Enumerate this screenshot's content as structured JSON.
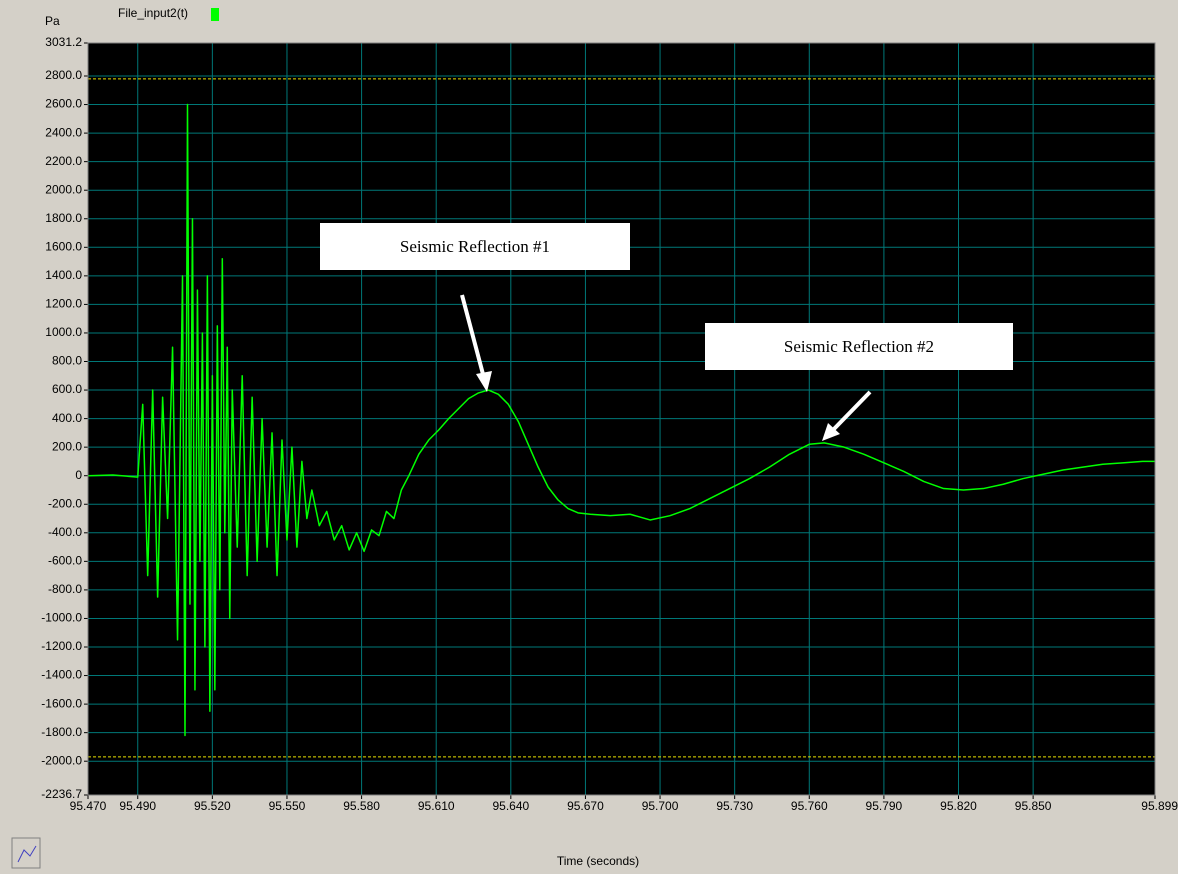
{
  "chart_data": {
    "type": "line",
    "y_unit": "Pa",
    "legend": "File_input2(t)",
    "xlabel": "Time (seconds)",
    "annotations": [
      "Seismic Reflection #1",
      "Seismic Reflection #2"
    ],
    "color": "#00ff00",
    "grid": true,
    "limit_lines": [
      2780,
      -1970
    ],
    "limit_color": "#e8e000",
    "xlim": [
      95.47,
      95.899
    ],
    "xticks": [
      {
        "value": 95.47,
        "label": "95.470"
      },
      {
        "value": 95.49,
        "label": "95.490"
      },
      {
        "value": 95.52,
        "label": "95.520"
      },
      {
        "value": 95.55,
        "label": "95.550"
      },
      {
        "value": 95.58,
        "label": "95.580"
      },
      {
        "value": 95.61,
        "label": "95.610"
      },
      {
        "value": 95.64,
        "label": "95.640"
      },
      {
        "value": 95.67,
        "label": "95.670"
      },
      {
        "value": 95.7,
        "label": "95.700"
      },
      {
        "value": 95.73,
        "label": "95.730"
      },
      {
        "value": 95.76,
        "label": "95.760"
      },
      {
        "value": 95.79,
        "label": "95.790"
      },
      {
        "value": 95.82,
        "label": "95.820"
      },
      {
        "value": 95.85,
        "label": "95.850"
      },
      95.899
    ],
    "ylim": [
      -2236.7,
      3031.2
    ],
    "yticks": [
      3031.2,
      {
        "value": 2800,
        "label": "2800.0"
      },
      {
        "value": 2600,
        "label": "2600.0"
      },
      {
        "value": 2400,
        "label": "2400.0"
      },
      {
        "value": 2200,
        "label": "2200.0"
      },
      {
        "value": 2000,
        "label": "2000.0"
      },
      {
        "value": 1800,
        "label": "1800.0"
      },
      {
        "value": 1600,
        "label": "1600.0"
      },
      {
        "value": 1400,
        "label": "1400.0"
      },
      {
        "value": 1200,
        "label": "1200.0"
      },
      {
        "value": 1000,
        "label": "1000.0"
      },
      {
        "value": 800,
        "label": "800.0"
      },
      {
        "value": 600,
        "label": "600.0"
      },
      {
        "value": 400,
        "label": "400.0"
      },
      {
        "value": 200,
        "label": "200.0"
      },
      0,
      {
        "value": -200,
        "label": "-200.0"
      },
      {
        "value": -400,
        "label": "-400.0"
      },
      {
        "value": -600,
        "label": "-600.0"
      },
      {
        "value": -800,
        "label": "-800.0"
      },
      {
        "value": -1000,
        "label": "-1000.0"
      },
      {
        "value": -1200,
        "label": "-1200.0"
      },
      {
        "value": -1400,
        "label": "-1400.0"
      },
      {
        "value": -1600,
        "label": "-1600.0"
      },
      {
        "value": -1800,
        "label": "-1800.0"
      },
      {
        "value": -2000,
        "label": "-2000.0"
      },
      -2236.7
    ],
    "x": [
      95.47,
      95.48,
      95.49,
      95.492,
      95.494,
      95.496,
      95.498,
      95.5,
      95.502,
      95.504,
      95.506,
      95.508,
      95.509,
      95.51,
      95.511,
      95.512,
      95.513,
      95.514,
      95.515,
      95.516,
      95.517,
      95.518,
      95.519,
      95.52,
      95.521,
      95.522,
      95.523,
      95.524,
      95.525,
      95.526,
      95.527,
      95.528,
      95.53,
      95.532,
      95.534,
      95.536,
      95.538,
      95.54,
      95.542,
      95.544,
      95.546,
      95.548,
      95.55,
      95.552,
      95.554,
      95.556,
      95.558,
      95.56,
      95.563,
      95.566,
      95.569,
      95.572,
      95.575,
      95.578,
      95.581,
      95.584,
      95.587,
      95.59,
      95.593,
      95.596,
      95.599,
      95.603,
      95.607,
      95.611,
      95.615,
      95.619,
      95.623,
      95.627,
      95.631,
      95.635,
      95.639,
      95.643,
      95.647,
      95.651,
      95.655,
      95.659,
      95.663,
      95.667,
      95.672,
      95.68,
      95.688,
      95.696,
      95.704,
      95.712,
      95.72,
      95.728,
      95.736,
      95.744,
      95.752,
      95.76,
      95.766,
      95.774,
      95.782,
      95.79,
      95.798,
      95.806,
      95.814,
      95.822,
      95.83,
      95.838,
      95.846,
      95.854,
      95.862,
      95.87,
      95.878,
      95.886,
      95.894,
      95.899
    ],
    "values": [
      0,
      5,
      -10,
      500,
      -700,
      600,
      -850,
      550,
      -300,
      900,
      -1150,
      1400,
      -1820,
      2600,
      -900,
      1800,
      -1500,
      1300,
      -600,
      1000,
      -1200,
      1400,
      -1650,
      700,
      -1500,
      1050,
      -800,
      1520,
      -400,
      900,
      -1000,
      600,
      -500,
      700,
      -700,
      550,
      -600,
      400,
      -500,
      300,
      -700,
      250,
      -450,
      200,
      -500,
      100,
      -300,
      -100,
      -350,
      -250,
      -450,
      -350,
      -520,
      -400,
      -530,
      -380,
      -420,
      -250,
      -300,
      -100,
      0,
      150,
      250,
      320,
      400,
      470,
      540,
      580,
      600,
      570,
      500,
      380,
      220,
      60,
      -80,
      -170,
      -230,
      -260,
      -270,
      -280,
      -270,
      -310,
      -280,
      -230,
      -160,
      -90,
      -20,
      60,
      150,
      220,
      230,
      200,
      150,
      90,
      30,
      -40,
      -90,
      -100,
      -90,
      -60,
      -20,
      10,
      40,
      60,
      80,
      90,
      100,
      100
    ]
  }
}
